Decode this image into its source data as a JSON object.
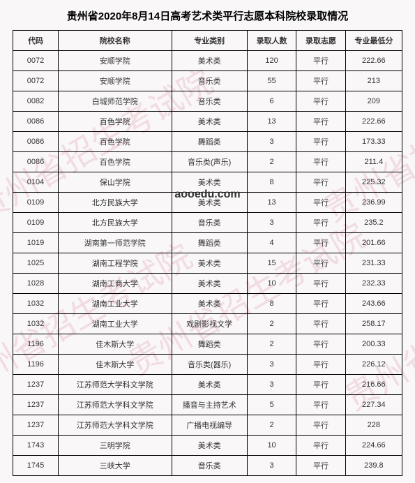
{
  "title": "贵州省2020年8月14日高考艺术类平行志愿本科院校录取情况",
  "watermark_text": "贵州省招生考试院",
  "center_url": "aooedu.com",
  "headers": {
    "code": "代码",
    "school": "院校名称",
    "major": "专业类别",
    "count": "录取人数",
    "wish": "录取志愿",
    "score": "专业最低分"
  },
  "rows": [
    {
      "code": "0072",
      "school": "安顺学院",
      "major": "美术类",
      "count": "120",
      "wish": "平行",
      "score": "222.66"
    },
    {
      "code": "0072",
      "school": "安顺学院",
      "major": "音乐类",
      "count": "55",
      "wish": "平行",
      "score": "213"
    },
    {
      "code": "0082",
      "school": "白城师范学院",
      "major": "音乐类",
      "count": "6",
      "wish": "平行",
      "score": "209"
    },
    {
      "code": "0086",
      "school": "百色学院",
      "major": "美术类",
      "count": "13",
      "wish": "平行",
      "score": "222.66"
    },
    {
      "code": "0086",
      "school": "百色学院",
      "major": "舞蹈类",
      "count": "3",
      "wish": "平行",
      "score": "173.33"
    },
    {
      "code": "0086",
      "school": "百色学院",
      "major": "音乐类(声乐)",
      "count": "2",
      "wish": "平行",
      "score": "211.4"
    },
    {
      "code": "0104",
      "school": "保山学院",
      "major": "美术类",
      "count": "8",
      "wish": "平行",
      "score": "225.32"
    },
    {
      "code": "0109",
      "school": "北方民族大学",
      "major": "美术类",
      "count": "13",
      "wish": "平行",
      "score": "236.99"
    },
    {
      "code": "0109",
      "school": "北方民族大学",
      "major": "音乐类",
      "count": "3",
      "wish": "平行",
      "score": "235.2"
    },
    {
      "code": "1019",
      "school": "湖南第一师范学院",
      "major": "舞蹈类",
      "count": "4",
      "wish": "平行",
      "score": "201.66"
    },
    {
      "code": "1025",
      "school": "湖南工程学院",
      "major": "美术类",
      "count": "15",
      "wish": "平行",
      "score": "231.33"
    },
    {
      "code": "1028",
      "school": "湖南工商大学",
      "major": "美术类",
      "count": "10",
      "wish": "平行",
      "score": "232.33"
    },
    {
      "code": "1032",
      "school": "湖南工业大学",
      "major": "美术类",
      "count": "8",
      "wish": "平行",
      "score": "243.66"
    },
    {
      "code": "1032",
      "school": "湖南工业大学",
      "major": "戏剧影视文学",
      "count": "2",
      "wish": "平行",
      "score": "258.17"
    },
    {
      "code": "1196",
      "school": "佳木斯大学",
      "major": "舞蹈类",
      "count": "2",
      "wish": "平行",
      "score": "200.33"
    },
    {
      "code": "1196",
      "school": "佳木斯大学",
      "major": "音乐类(器乐)",
      "count": "3",
      "wish": "平行",
      "score": "226.12"
    },
    {
      "code": "1237",
      "school": "江苏师范大学科文学院",
      "major": "美术类",
      "count": "3",
      "wish": "平行",
      "score": "216.66"
    },
    {
      "code": "1237",
      "school": "江苏师范大学科文学院",
      "major": "播音与主持艺术",
      "count": "5",
      "wish": "平行",
      "score": "227.34"
    },
    {
      "code": "1237",
      "school": "江苏师范大学科文学院",
      "major": "广播电视编导",
      "count": "2",
      "wish": "平行",
      "score": "228"
    },
    {
      "code": "1743",
      "school": "三明学院",
      "major": "美术类",
      "count": "10",
      "wish": "平行",
      "score": "224.66"
    },
    {
      "code": "1745",
      "school": "三峡大学",
      "major": "音乐类",
      "count": "3",
      "wish": "平行",
      "score": "239.8"
    }
  ]
}
